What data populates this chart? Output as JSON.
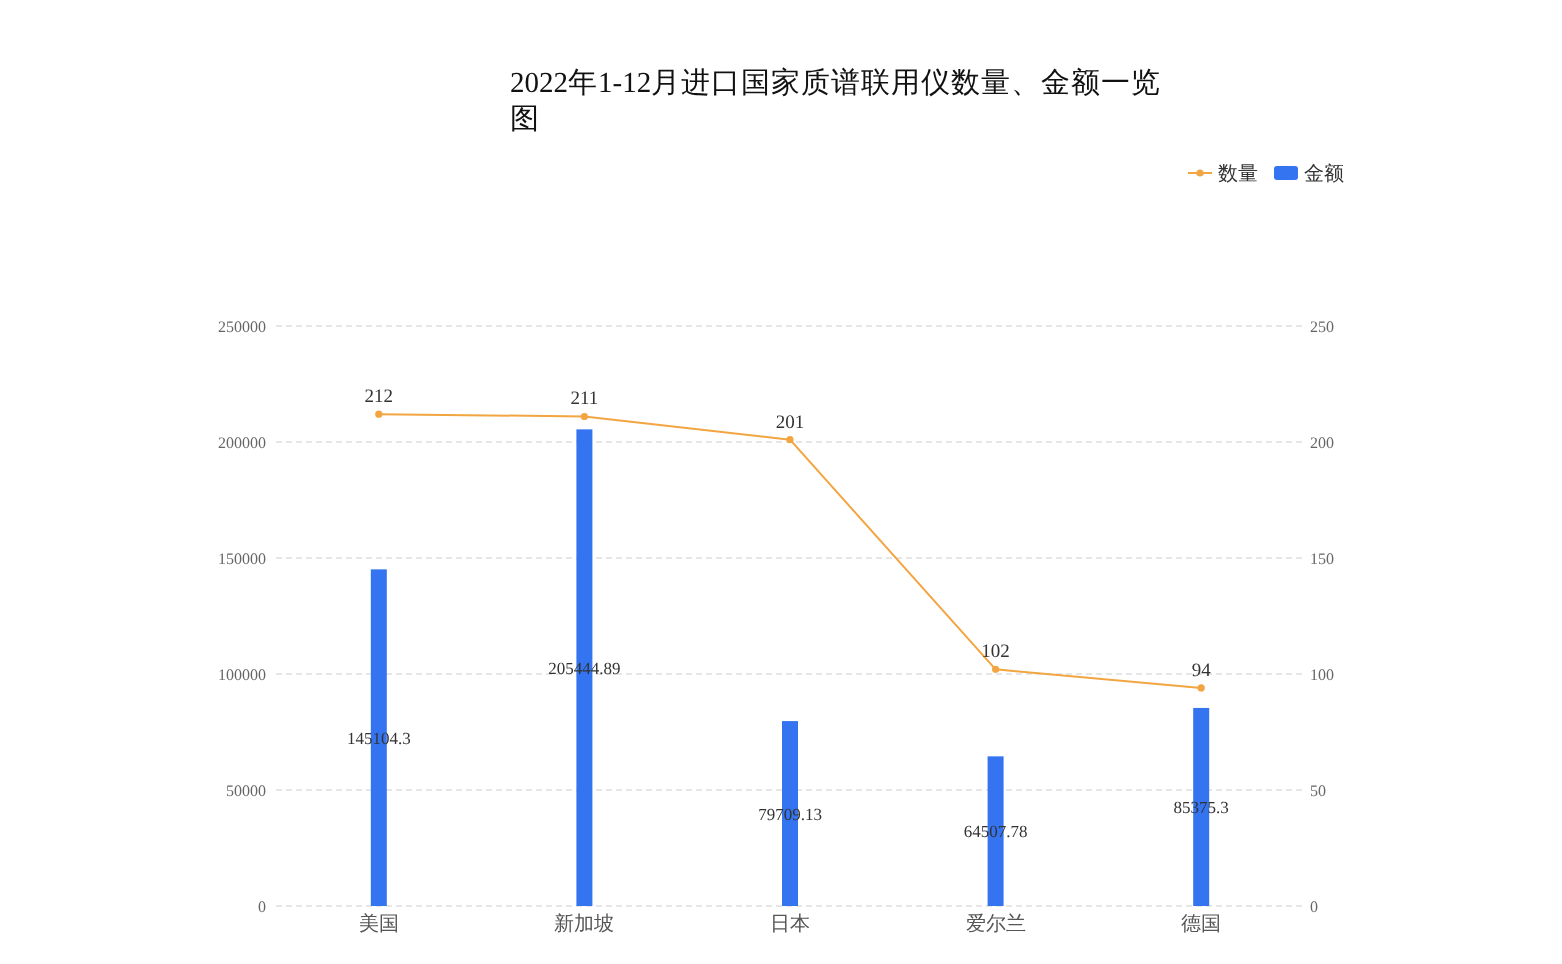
{
  "chart_data": {
    "type": "bar",
    "title": "2022年1-12月进口国家质谱联用仪数量、金额一览图",
    "categories": [
      "美国",
      "新加坡",
      "日本",
      "爱尔兰",
      "德国"
    ],
    "series": [
      {
        "name": "数量",
        "type": "line",
        "axis": "y2",
        "color": "#f2a541",
        "values": [
          212,
          211,
          201,
          102,
          94
        ]
      },
      {
        "name": "金额",
        "color": "#3574f0",
        "values": [
          145104.3,
          205444.89,
          79709.13,
          64507.78,
          85375.3
        ]
      }
    ],
    "ylim": [
      0,
      250000
    ],
    "yticks": [
      0,
      50000,
      100000,
      150000,
      200000,
      250000
    ],
    "y2lim": [
      0,
      250
    ],
    "y2ticks": [
      0,
      50,
      100,
      150,
      200,
      250
    ],
    "grid": "y",
    "legend": "top right",
    "marker": "circle",
    "data_labels": true
  }
}
